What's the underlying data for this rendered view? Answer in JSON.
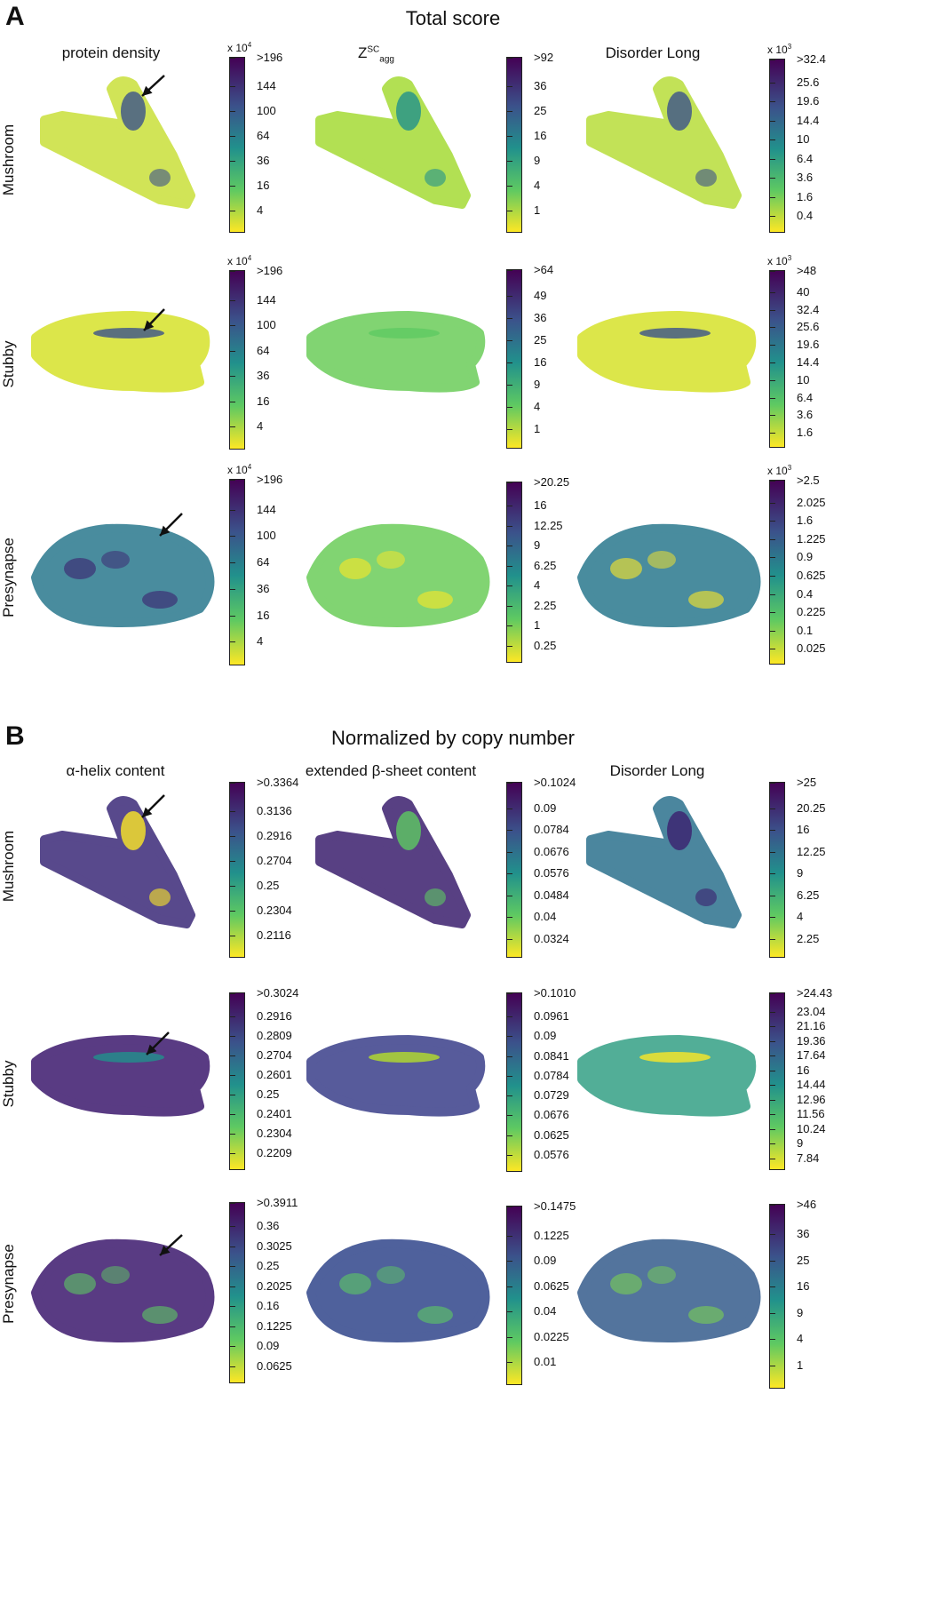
{
  "sections": [
    {
      "letter": "A",
      "title": "Total score",
      "columns": [
        "protein density",
        "Z",
        "Disorder Long"
      ],
      "column_z_sup": "SC",
      "column_z_sub": "agg",
      "rows": [
        "Mushroom",
        "Stubby",
        "Presynapse"
      ],
      "colorbars": [
        [
          {
            "multiplier": "x 10",
            "exp": "4",
            "ticks": [
              ">196",
              "144",
              "100",
              "64",
              "36",
              "16",
              "4"
            ]
          },
          {
            "multiplier": "",
            "exp": "",
            "ticks": [
              ">92",
              "36",
              "25",
              "16",
              "9",
              "4",
              "1"
            ]
          },
          {
            "multiplier": "x 10",
            "exp": "3",
            "ticks": [
              ">32.4",
              "25.6",
              "19.6",
              "14.4",
              "10",
              "6.4",
              "3.6",
              "1.6",
              "0.4"
            ]
          }
        ],
        [
          {
            "multiplier": "x 10",
            "exp": "4",
            "ticks": [
              ">196",
              "144",
              "100",
              "64",
              "36",
              "16",
              "4"
            ]
          },
          {
            "multiplier": "",
            "exp": "",
            "ticks": [
              ">64",
              "49",
              "36",
              "25",
              "16",
              "9",
              "4",
              "1"
            ]
          },
          {
            "multiplier": "x 10",
            "exp": "3",
            "ticks": [
              ">48",
              "40",
              "32.4",
              "25.6",
              "19.6",
              "14.4",
              "10",
              "6.4",
              "3.6",
              "1.6"
            ]
          }
        ],
        [
          {
            "multiplier": "x 10",
            "exp": "4",
            "ticks": [
              ">196",
              "144",
              "100",
              "64",
              "36",
              "16",
              "4"
            ]
          },
          {
            "multiplier": "",
            "exp": "",
            "ticks": [
              ">20.25",
              "16",
              "12.25",
              "9",
              "6.25",
              "4",
              "2.25",
              "1",
              "0.25"
            ]
          },
          {
            "multiplier": "x 10",
            "exp": "3",
            "ticks": [
              ">2.5",
              "2.025",
              "1.6",
              "1.225",
              "0.9",
              "0.625",
              "0.4",
              "0.225",
              "0.1",
              "0.025"
            ]
          }
        ]
      ]
    },
    {
      "letter": "B",
      "title": "Normalized by copy number",
      "columns": [
        "α-helix content",
        "extended β-sheet content",
        "Disorder Long"
      ],
      "rows": [
        "Mushroom",
        "Stubby",
        "Presynapse"
      ],
      "colorbars": [
        [
          {
            "multiplier": "",
            "exp": "",
            "ticks": [
              ">0.3364",
              "0.3136",
              "0.2916",
              "0.2704",
              "0.25",
              "0.2304",
              "0.2116"
            ]
          },
          {
            "multiplier": "",
            "exp": "",
            "ticks": [
              ">0.1024",
              "0.09",
              "0.0784",
              "0.0676",
              "0.0576",
              "0.0484",
              "0.04",
              "0.0324"
            ]
          },
          {
            "multiplier": "",
            "exp": "",
            "ticks": [
              ">25",
              "20.25",
              "16",
              "12.25",
              "9",
              "6.25",
              "4",
              "2.25"
            ]
          }
        ],
        [
          {
            "multiplier": "",
            "exp": "",
            "ticks": [
              ">0.3024",
              "0.2916",
              "0.2809",
              "0.2704",
              "0.2601",
              "0.25",
              "0.2401",
              "0.2304",
              "0.2209"
            ]
          },
          {
            "multiplier": "",
            "exp": "",
            "ticks": [
              ">0.1010",
              "0.0961",
              "0.09",
              "0.0841",
              "0.0784",
              "0.0729",
              "0.0676",
              "0.0625",
              "0.0576"
            ]
          },
          {
            "multiplier": "",
            "exp": "",
            "ticks": [
              ">24.43",
              "23.04",
              "21.16",
              "19.36",
              "17.64",
              "16",
              "14.44",
              "12.96",
              "11.56",
              "10.24",
              "9",
              "7.84"
            ]
          }
        ],
        [
          {
            "multiplier": "",
            "exp": "",
            "ticks": [
              ">0.3911",
              "0.36",
              "0.3025",
              "0.25",
              "0.2025",
              "0.16",
              "0.1225",
              "0.09",
              "0.0625"
            ]
          },
          {
            "multiplier": "",
            "exp": "",
            "ticks": [
              ">0.1475",
              "0.1225",
              "0.09",
              "0.0625",
              "0.04",
              "0.0225",
              "0.01"
            ]
          },
          {
            "multiplier": "",
            "exp": "",
            "ticks": [
              ">46",
              "36",
              "25",
              "16",
              "9",
              "4",
              "1"
            ]
          }
        ]
      ]
    }
  ],
  "colormap": {
    "top": "#440154",
    "upper": "#3b528b",
    "mid": "#21918c",
    "lower": "#5ec962",
    "bottom": "#fde725"
  }
}
